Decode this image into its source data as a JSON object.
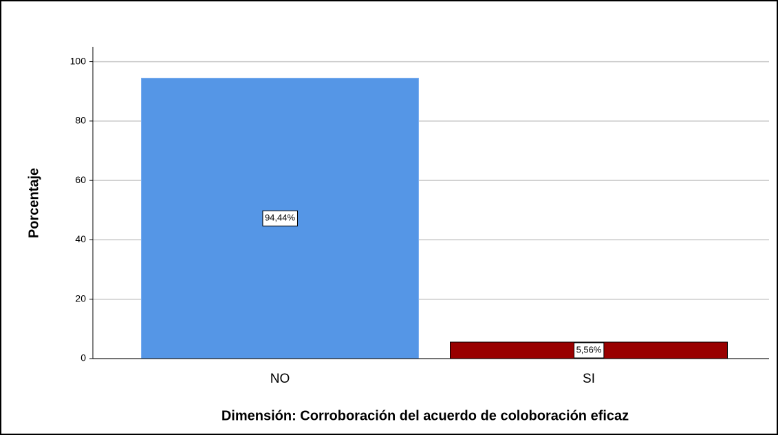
{
  "chart_data": {
    "type": "bar",
    "categories": [
      "NO",
      "SI"
    ],
    "values": [
      94.44,
      5.56
    ],
    "value_labels": [
      "94,44%",
      "5,56%"
    ],
    "colors": [
      "#5596e6",
      "#990000"
    ],
    "ylabel": "Porcentaje",
    "xlabel": "Dimensión: Corroboración del acuerdo de coloboración eficaz",
    "ylim": [
      0,
      105
    ],
    "yticks": [
      0,
      20,
      40,
      60,
      80,
      100
    ],
    "grid": true
  }
}
